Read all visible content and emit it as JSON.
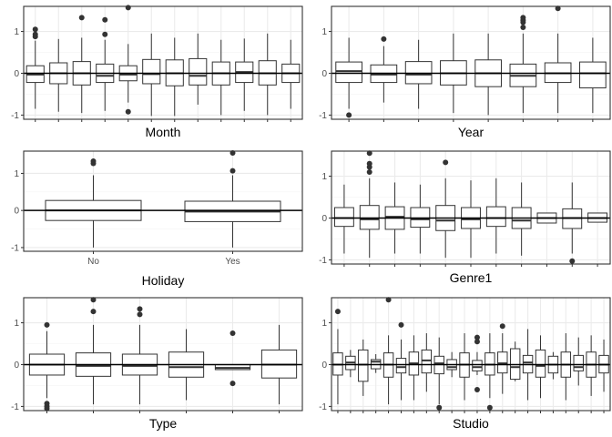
{
  "chart_data": [
    {
      "type": "boxplot",
      "xlabel": "Month",
      "ylim": [
        -1.1,
        1.6
      ],
      "yticks": [
        -1,
        0,
        1
      ],
      "tick_labels": [],
      "hline": 0,
      "boxes": [
        {
          "q1": -0.22,
          "median": -0.03,
          "q3": 0.18,
          "lo": -0.85,
          "hi": 0.78,
          "out": [
            1.05,
            0.93,
            0.88
          ]
        },
        {
          "q1": -0.25,
          "median": 0.0,
          "q3": 0.25,
          "lo": -0.92,
          "hi": 0.82,
          "out": []
        },
        {
          "q1": -0.28,
          "median": 0.0,
          "q3": 0.28,
          "lo": -0.95,
          "hi": 0.85,
          "out": [
            1.33
          ]
        },
        {
          "q1": -0.22,
          "median": -0.06,
          "q3": 0.22,
          "lo": -0.9,
          "hi": 0.8,
          "out": [
            1.28,
            0.93
          ]
        },
        {
          "q1": -0.18,
          "median": -0.03,
          "q3": 0.18,
          "lo": -0.7,
          "hi": 0.7,
          "out": [
            1.57,
            -0.92
          ]
        },
        {
          "q1": -0.25,
          "median": -0.02,
          "q3": 0.33,
          "lo": -1.02,
          "hi": 0.95,
          "out": []
        },
        {
          "q1": -0.3,
          "median": 0.0,
          "q3": 0.32,
          "lo": -1.02,
          "hi": 0.85,
          "out": []
        },
        {
          "q1": -0.28,
          "median": -0.06,
          "q3": 0.35,
          "lo": -0.75,
          "hi": 0.95,
          "out": []
        },
        {
          "q1": -0.28,
          "median": 0.0,
          "q3": 0.27,
          "lo": -1.0,
          "hi": 0.8,
          "out": []
        },
        {
          "q1": -0.22,
          "median": 0.03,
          "q3": 0.27,
          "lo": -0.9,
          "hi": 0.83,
          "out": []
        },
        {
          "q1": -0.28,
          "median": 0.0,
          "q3": 0.3,
          "lo": -1.0,
          "hi": 0.95,
          "out": []
        },
        {
          "q1": -0.22,
          "median": 0.0,
          "q3": 0.22,
          "lo": -0.85,
          "hi": 0.8,
          "out": []
        }
      ]
    },
    {
      "type": "boxplot",
      "xlabel": "Year",
      "ylim": [
        -1.1,
        1.6
      ],
      "yticks": [
        -1,
        0,
        1
      ],
      "tick_labels": [],
      "hline": 0,
      "boxes": [
        {
          "q1": -0.22,
          "median": 0.05,
          "q3": 0.27,
          "lo": -0.85,
          "hi": 0.85,
          "out": [
            -1.0
          ]
        },
        {
          "q1": -0.22,
          "median": -0.03,
          "q3": 0.2,
          "lo": -0.7,
          "hi": 0.65,
          "out": [
            0.82
          ]
        },
        {
          "q1": -0.25,
          "median": -0.03,
          "q3": 0.28,
          "lo": -0.85,
          "hi": 0.8,
          "out": []
        },
        {
          "q1": -0.28,
          "median": 0.0,
          "q3": 0.3,
          "lo": -0.95,
          "hi": 0.95,
          "out": []
        },
        {
          "q1": -0.32,
          "median": 0.0,
          "q3": 0.32,
          "lo": -1.0,
          "hi": 0.95,
          "out": []
        },
        {
          "q1": -0.32,
          "median": -0.06,
          "q3": 0.22,
          "lo": -0.95,
          "hi": 0.95,
          "out": [
            1.33,
            1.27,
            1.22,
            1.1
          ]
        },
        {
          "q1": -0.22,
          "median": 0.0,
          "q3": 0.25,
          "lo": -0.95,
          "hi": 0.95,
          "out": [
            1.55
          ]
        },
        {
          "q1": -0.35,
          "median": 0.0,
          "q3": 0.27,
          "lo": -0.95,
          "hi": 0.85,
          "out": []
        }
      ]
    },
    {
      "type": "boxplot",
      "xlabel": "Holiday",
      "ylim": [
        -1.1,
        1.6
      ],
      "yticks": [
        -1,
        0,
        1
      ],
      "tick_labels": [
        "No",
        "Yes"
      ],
      "hline": 0,
      "boxes": [
        {
          "q1": -0.27,
          "median": 0.0,
          "q3": 0.27,
          "lo": -1.0,
          "hi": 0.95,
          "out": [
            1.33,
            1.27
          ]
        },
        {
          "q1": -0.3,
          "median": -0.03,
          "q3": 0.25,
          "lo": -1.0,
          "hi": 0.95,
          "out": [
            1.55,
            1.07
          ]
        }
      ]
    },
    {
      "type": "boxplot",
      "xlabel": "Genre1",
      "ylim": [
        -1.1,
        1.6
      ],
      "yticks": [
        -1,
        0,
        1
      ],
      "tick_labels": [],
      "hline": 0,
      "boxes": [
        {
          "q1": -0.2,
          "median": 0.0,
          "q3": 0.25,
          "lo": -0.85,
          "hi": 0.8,
          "out": []
        },
        {
          "q1": -0.27,
          "median": -0.03,
          "q3": 0.3,
          "lo": -0.95,
          "hi": 0.95,
          "out": [
            1.55,
            1.3,
            1.22,
            1.1
          ]
        },
        {
          "q1": -0.27,
          "median": 0.03,
          "q3": 0.27,
          "lo": -0.85,
          "hi": 0.85,
          "out": []
        },
        {
          "q1": -0.22,
          "median": -0.03,
          "q3": 0.25,
          "lo": -0.85,
          "hi": 0.8,
          "out": []
        },
        {
          "q1": -0.3,
          "median": -0.06,
          "q3": 0.3,
          "lo": -0.95,
          "hi": 0.95,
          "out": [
            1.33
          ]
        },
        {
          "q1": -0.25,
          "median": -0.03,
          "q3": 0.25,
          "lo": -0.95,
          "hi": 0.9,
          "out": []
        },
        {
          "q1": -0.2,
          "median": 0.0,
          "q3": 0.27,
          "lo": -0.85,
          "hi": 0.95,
          "out": []
        },
        {
          "q1": -0.25,
          "median": -0.06,
          "q3": 0.25,
          "lo": -0.9,
          "hi": 0.85,
          "out": []
        },
        {
          "q1": -0.12,
          "median": 0.0,
          "q3": 0.12,
          "lo": -0.12,
          "hi": 0.12,
          "out": []
        },
        {
          "q1": -0.25,
          "median": 0.0,
          "q3": 0.22,
          "lo": -0.85,
          "hi": 0.85,
          "out": [
            -1.03
          ]
        },
        {
          "q1": -0.1,
          "median": 0.0,
          "q3": 0.12,
          "lo": -0.1,
          "hi": 0.12,
          "out": []
        }
      ]
    },
    {
      "type": "boxplot",
      "xlabel": "Type",
      "ylim": [
        -1.1,
        1.6
      ],
      "yticks": [
        -1,
        0,
        1
      ],
      "tick_labels": [],
      "hline": 0,
      "boxes": [
        {
          "q1": -0.25,
          "median": 0.0,
          "q3": 0.25,
          "lo": -0.8,
          "hi": 0.8,
          "out": [
            0.95,
            -0.93,
            -1.0,
            -1.05
          ]
        },
        {
          "q1": -0.28,
          "median": -0.03,
          "q3": 0.28,
          "lo": -0.95,
          "hi": 0.95,
          "out": [
            1.55,
            1.27
          ]
        },
        {
          "q1": -0.25,
          "median": -0.03,
          "q3": 0.25,
          "lo": -0.95,
          "hi": 0.95,
          "out": [
            1.33,
            1.2
          ]
        },
        {
          "q1": -0.3,
          "median": -0.06,
          "q3": 0.3,
          "lo": -0.85,
          "hi": 0.85,
          "out": []
        },
        {
          "q1": -0.12,
          "median": -0.08,
          "q3": 0.0,
          "lo": -0.12,
          "hi": 0.0,
          "out": [
            0.75,
            -0.45
          ]
        },
        {
          "q1": -0.32,
          "median": 0.0,
          "q3": 0.35,
          "lo": -0.95,
          "hi": 0.95,
          "out": []
        }
      ]
    },
    {
      "type": "boxplot",
      "xlabel": "Studio",
      "ylim": [
        -1.1,
        1.6
      ],
      "yticks": [
        -1,
        0,
        1
      ],
      "tick_labels": [],
      "hline": 0,
      "boxes": [
        {
          "q1": -0.25,
          "median": 0.0,
          "q3": 0.28,
          "lo": -0.95,
          "hi": 0.85,
          "out": [
            1.27
          ]
        },
        {
          "q1": -0.12,
          "median": 0.05,
          "q3": 0.2,
          "lo": -0.3,
          "hi": 0.35,
          "out": []
        },
        {
          "q1": -0.4,
          "median": 0.0,
          "q3": 0.35,
          "lo": -0.75,
          "hi": 0.6,
          "out": []
        },
        {
          "q1": -0.1,
          "median": 0.07,
          "q3": 0.12,
          "lo": -0.2,
          "hi": 0.25,
          "out": []
        },
        {
          "q1": -0.3,
          "median": 0.0,
          "q3": 0.28,
          "lo": -0.95,
          "hi": 0.7,
          "out": [
            1.55
          ]
        },
        {
          "q1": -0.2,
          "median": -0.06,
          "q3": 0.15,
          "lo": -0.85,
          "hi": 0.6,
          "out": [
            0.95
          ]
        },
        {
          "q1": -0.25,
          "median": 0.03,
          "q3": 0.3,
          "lo": -0.85,
          "hi": 0.7,
          "out": []
        },
        {
          "q1": -0.2,
          "median": 0.1,
          "q3": 0.35,
          "lo": -0.65,
          "hi": 0.75,
          "out": []
        },
        {
          "q1": -0.22,
          "median": 0.03,
          "q3": 0.2,
          "lo": -0.95,
          "hi": 0.65,
          "out": [
            -1.03
          ]
        },
        {
          "q1": -0.12,
          "median": -0.06,
          "q3": 0.12,
          "lo": -0.3,
          "hi": 0.3,
          "out": []
        },
        {
          "q1": -0.3,
          "median": 0.0,
          "q3": 0.28,
          "lo": -0.85,
          "hi": 0.75,
          "out": []
        },
        {
          "q1": -0.15,
          "median": -0.06,
          "q3": 0.1,
          "lo": -0.25,
          "hi": 0.3,
          "out": [
            0.65,
            0.55,
            -0.6
          ]
        },
        {
          "q1": -0.25,
          "median": 0.0,
          "q3": 0.28,
          "lo": -0.8,
          "hi": 0.75,
          "out": [
            -1.03
          ]
        },
        {
          "q1": -0.2,
          "median": 0.03,
          "q3": 0.3,
          "lo": -0.7,
          "hi": 0.75,
          "out": [
            0.92
          ]
        },
        {
          "q1": -0.35,
          "median": -0.06,
          "q3": 0.38,
          "lo": -0.4,
          "hi": 0.55,
          "out": []
        },
        {
          "q1": -0.2,
          "median": 0.05,
          "q3": 0.22,
          "lo": -0.85,
          "hi": 0.85,
          "out": []
        },
        {
          "q1": -0.3,
          "median": -0.03,
          "q3": 0.35,
          "lo": -0.8,
          "hi": 0.7,
          "out": []
        },
        {
          "q1": -0.2,
          "median": 0.0,
          "q3": 0.2,
          "lo": -0.35,
          "hi": 0.3,
          "out": []
        },
        {
          "q1": -0.3,
          "median": 0.0,
          "q3": 0.3,
          "lo": -0.85,
          "hi": 0.75,
          "out": []
        },
        {
          "q1": -0.15,
          "median": -0.06,
          "q3": 0.22,
          "lo": -0.5,
          "hi": 0.65,
          "out": []
        },
        {
          "q1": -0.3,
          "median": 0.0,
          "q3": 0.3,
          "lo": -0.75,
          "hi": 0.7,
          "out": []
        },
        {
          "q1": -0.2,
          "median": 0.0,
          "q3": 0.22,
          "lo": -0.65,
          "hi": 0.6,
          "out": []
        }
      ]
    }
  ],
  "colors": {
    "panel_bg": "#ffffff",
    "panel_border": "#333333",
    "grid_major": "#ebebeb",
    "grid_minor": "#f5f5f5",
    "box_stroke": "#333333",
    "outlier": "#333333",
    "axis_text": "#4d4d4d",
    "title_text": "#000000",
    "zero_line": "#000000"
  }
}
